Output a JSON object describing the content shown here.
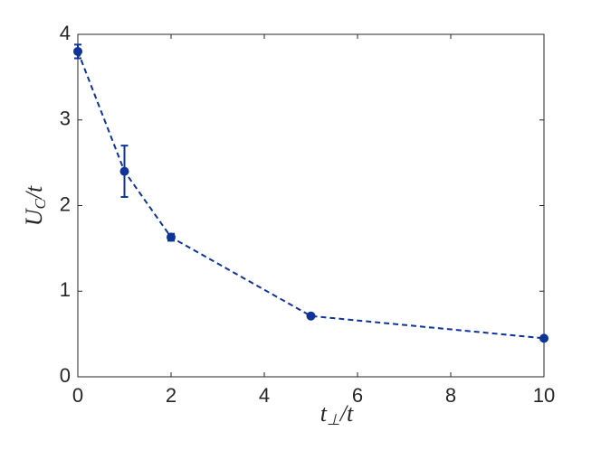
{
  "chart_data": {
    "type": "line",
    "xlabel": [
      "t",
      "⊥",
      "/t"
    ],
    "ylabel": [
      "U",
      "C",
      "/t"
    ],
    "x": [
      0,
      1,
      2,
      5,
      10
    ],
    "values": [
      3.8,
      2.4,
      1.63,
      0.71,
      0.45
    ],
    "errors": [
      0.08,
      0.3,
      0.04,
      0.02,
      0.02
    ],
    "color": "#0e3399",
    "xlim": [
      0,
      10
    ],
    "xticks": [
      0,
      2,
      4,
      6,
      8,
      10
    ],
    "ylim": [
      0,
      4
    ],
    "yticks": [
      0,
      1,
      2,
      3,
      4
    ]
  }
}
